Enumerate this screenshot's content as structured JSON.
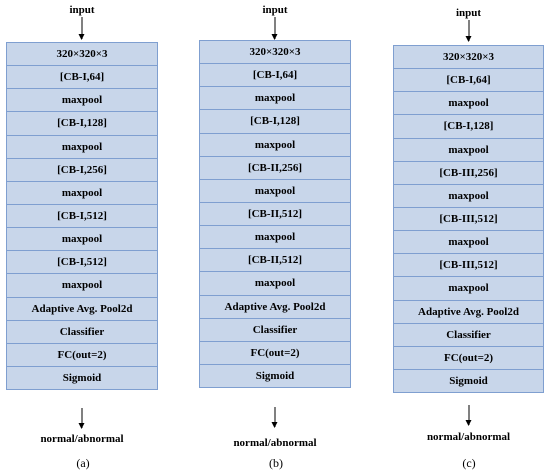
{
  "diagrams": [
    {
      "input_label": "input",
      "output_label": "normal/abnormal",
      "caption": "(a)",
      "layers": [
        "320×320×3",
        "[CB-I,64]",
        "maxpool",
        "[CB-I,128]",
        "maxpool",
        "[CB-I,256]",
        "maxpool",
        "[CB-I,512]",
        "maxpool",
        "[CB-I,512]",
        "maxpool",
        "Adaptive Avg. Pool2d",
        "Classifier",
        "FC(out=2)",
        "Sigmoid"
      ]
    },
    {
      "input_label": "input",
      "output_label": "normal/abnormal",
      "caption": "(b)",
      "layers": [
        "320×320×3",
        "[CB-I,64]",
        "maxpool",
        "[CB-I,128]",
        "maxpool",
        "[CB-II,256]",
        "maxpool",
        "[CB-II,512]",
        "maxpool",
        "[CB-II,512]",
        "maxpool",
        "Adaptive Avg. Pool2d",
        "Classifier",
        "FC(out=2)",
        "Sigmoid"
      ]
    },
    {
      "input_label": "input",
      "output_label": "normal/abnormal",
      "caption": "(c)",
      "layers": [
        "320×320×3",
        "[CB-I,64]",
        "maxpool",
        "[CB-I,128]",
        "maxpool",
        "[CB-III,256]",
        "maxpool",
        "[CB-III,512]",
        "maxpool",
        "[CB-III,512]",
        "maxpool",
        "Adaptive Avg. Pool2d",
        "Classifier",
        "FC(out=2)",
        "Sigmoid"
      ]
    }
  ]
}
